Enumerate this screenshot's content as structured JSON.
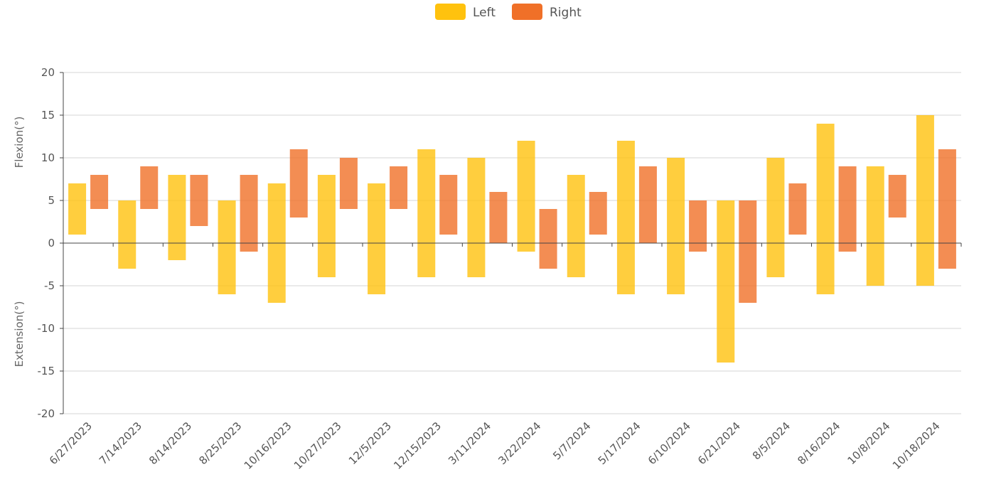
{
  "chart_data": {
    "type": "bar",
    "subtype": "floating-range",
    "title": "",
    "ylabel_top": "Flexion(°)",
    "ylabel_bottom": "Extension(°)",
    "ylim": [
      -20,
      20
    ],
    "yticks": [
      -20,
      -15,
      -10,
      -5,
      0,
      5,
      10,
      15,
      20
    ],
    "grid": true,
    "legend_position": "top-center",
    "categories": [
      "6/27/2023",
      "7/14/2023",
      "8/14/2023",
      "8/25/2023",
      "10/16/2023",
      "10/27/2023",
      "12/5/2023",
      "12/15/2023",
      "3/11/2024",
      "3/22/2024",
      "5/7/2024",
      "5/17/2024",
      "6/10/2024",
      "6/21/2024",
      "8/5/2024",
      "8/16/2024",
      "10/8/2024",
      "10/18/2024"
    ],
    "series": [
      {
        "name": "Left",
        "color": "#FFC20E",
        "low": [
          1,
          -3,
          -2,
          -6,
          -7,
          -4,
          -6,
          -4,
          -4,
          -1,
          -4,
          -6,
          -6,
          -14,
          -4,
          -6,
          -5,
          -5
        ],
        "high": [
          7,
          5,
          8,
          5,
          7,
          8,
          7,
          11,
          10,
          12,
          8,
          12,
          10,
          5,
          10,
          14,
          9,
          15
        ]
      },
      {
        "name": "Right",
        "color": "#F07028",
        "low": [
          4,
          4,
          2,
          -1,
          3,
          4,
          4,
          1,
          0,
          -3,
          1,
          0,
          -1,
          -7,
          1,
          -1,
          3,
          -3
        ],
        "high": [
          8,
          9,
          8,
          8,
          11,
          10,
          9,
          8,
          6,
          4,
          6,
          9,
          5,
          5,
          7,
          9,
          8,
          11
        ]
      }
    ]
  }
}
